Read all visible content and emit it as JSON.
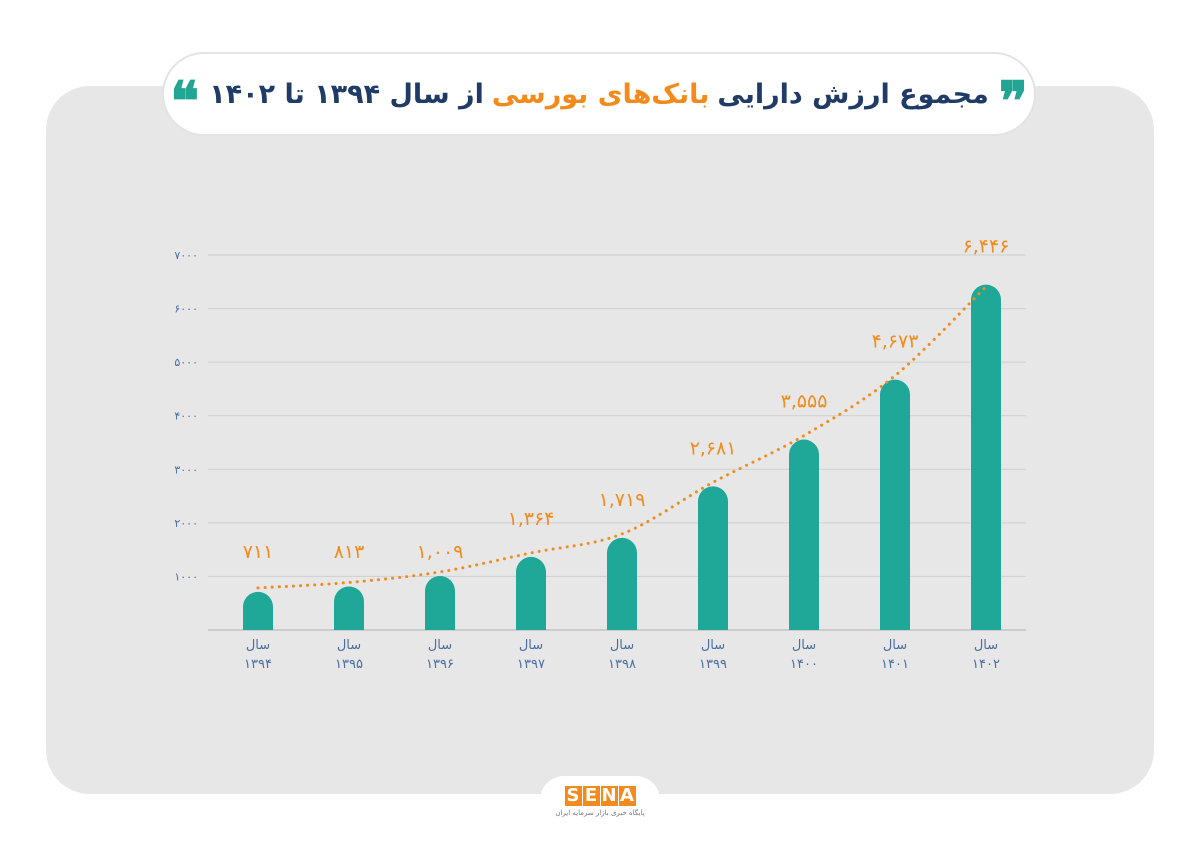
{
  "title": {
    "part1": "مجموع ارزش دارایی",
    "accent": "بانک‌های بورسی",
    "part2": "از سال ۱۳۹۴ تا ۱۴۰۲"
  },
  "colors": {
    "bar": "#1fa797",
    "trend": "#f28b1c",
    "title": "#1f3b66",
    "accent": "#f28b1c",
    "tick": "#4a6ea3"
  },
  "chart_data": {
    "type": "bar",
    "categories": [
      "۱۳۹۴",
      "۱۳۹۵",
      "۱۳۹۶",
      "۱۳۹۷",
      "۱۳۹۸",
      "۱۳۹۹",
      "۱۴۰۰",
      "۱۴۰۱",
      "۱۴۰۲"
    ],
    "category_prefix": "سال",
    "values": [
      711,
      813,
      1009,
      1364,
      1719,
      2681,
      3555,
      4673,
      6446
    ],
    "value_labels": [
      "۷۱۱",
      "۸۱۳",
      "۱,۰۰۹",
      "۱,۳۶۴",
      "۱,۷۱۹",
      "۲,۶۸۱",
      "۳,۵۵۵",
      "۴,۶۷۳",
      "۶,۴۴۶"
    ],
    "yticks": [
      1000,
      2000,
      3000,
      4000,
      5000,
      6000,
      7000
    ],
    "ytick_labels": [
      "۱۰۰۰",
      "۲۰۰۰",
      "۳۰۰۰",
      "۴۰۰۰",
      "۵۰۰۰",
      "۶۰۰۰",
      "۷۰۰۰"
    ],
    "ylim": [
      0,
      7000
    ],
    "grid": true,
    "trendline": "exponential, dotted",
    "title": "",
    "xlabel": "",
    "ylabel": ""
  },
  "footer": {
    "logo_letters": [
      "S",
      "E",
      "N",
      "A"
    ],
    "tagline": "پایگاه خبری بازار سرمایه ایران"
  }
}
